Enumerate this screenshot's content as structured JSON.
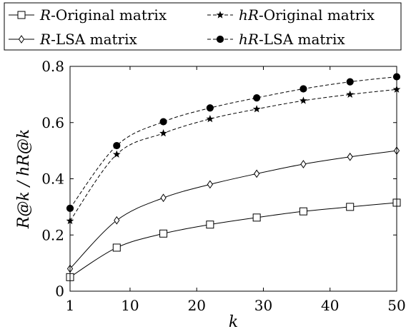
{
  "chart_data": {
    "type": "line",
    "title": "",
    "xlabel": "k",
    "ylabel": "R@k / hR@k",
    "xlim": [
      1,
      50
    ],
    "ylim": [
      0,
      0.8
    ],
    "xticks": [
      "1",
      "10",
      "20",
      "30",
      "40",
      "50"
    ],
    "yticks": [
      "0",
      "0.2",
      "0.4",
      "0.6",
      "0.8"
    ],
    "grid": false,
    "legend_placement": "top (above plot), 2 columns",
    "marker_x": [
      1,
      8,
      15,
      22,
      29,
      36,
      43,
      50
    ],
    "series": [
      {
        "name": "R-Original matrix",
        "name_prefix": "R",
        "name_suffix": "-Original matrix",
        "marker": "square",
        "dash": "solid",
        "values": [
          0.05,
          0.155,
          0.205,
          0.237,
          0.262,
          0.284,
          0.3,
          0.315
        ]
      },
      {
        "name": "hR-Original matrix",
        "name_prefix": "hR",
        "name_suffix": "-Original matrix",
        "marker": "star",
        "dash": "dashed",
        "values": [
          0.25,
          0.487,
          0.562,
          0.613,
          0.648,
          0.678,
          0.7,
          0.718
        ]
      },
      {
        "name": "R-LSA matrix",
        "name_prefix": "R",
        "name_suffix": "-LSA matrix",
        "marker": "diamond",
        "dash": "solid",
        "values": [
          0.08,
          0.252,
          0.332,
          0.38,
          0.418,
          0.452,
          0.478,
          0.5
        ]
      },
      {
        "name": "hR-LSA matrix",
        "name_prefix": "hR",
        "name_suffix": "-LSA matrix",
        "marker": "circle",
        "dash": "dashed",
        "values": [
          0.295,
          0.518,
          0.603,
          0.652,
          0.688,
          0.72,
          0.745,
          0.763
        ]
      }
    ]
  }
}
